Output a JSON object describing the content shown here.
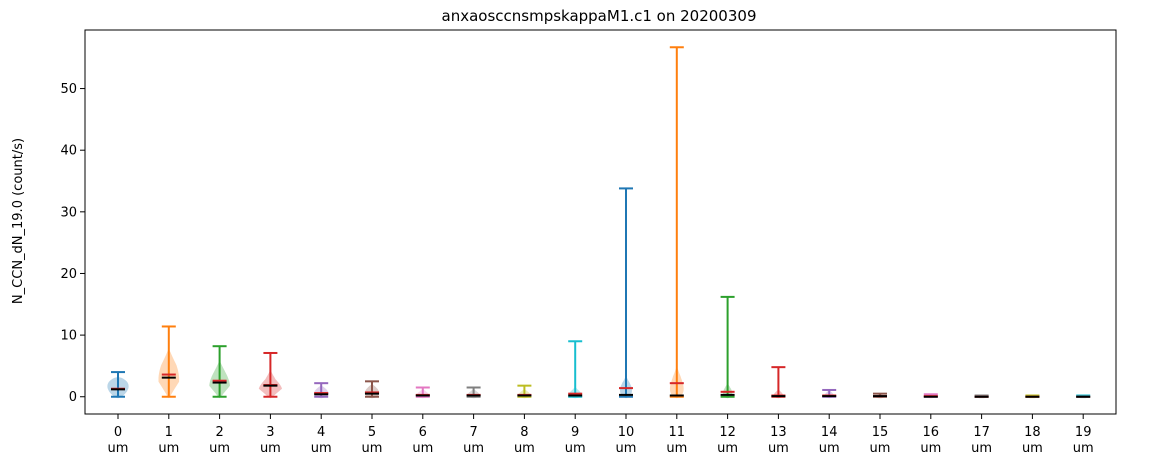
{
  "chart_data": {
    "type": "violin",
    "title": "anxaosccnsmpskappaM1.c1 on 20200309",
    "xlabel": "",
    "ylabel": "N_CCN_dN_19.0 (count/s)",
    "ylim": [
      -2.8,
      59.5
    ],
    "yticks": [
      0,
      10,
      20,
      30,
      40,
      50
    ],
    "grid": false,
    "legend": "none",
    "categories": [
      "0\num",
      "1\num",
      "2\num",
      "3\num",
      "4\num",
      "5\num",
      "6\num",
      "7\num",
      "8\num",
      "9\num",
      "10\num",
      "11\num",
      "12\num",
      "13\num",
      "14\num",
      "15\num",
      "16\num",
      "17\num",
      "18\num",
      "19\num"
    ],
    "colors": [
      "#1f77b4",
      "#ff7f0e",
      "#2ca02c",
      "#d62728",
      "#9467bd",
      "#8c564b",
      "#e377c2",
      "#7f7f7f",
      "#bcbd22",
      "#17becf",
      "#1f77b4",
      "#ff7f0e",
      "#2ca02c",
      "#d62728",
      "#9467bd",
      "#8c564b",
      "#e377c2",
      "#7f7f7f",
      "#bcbd22",
      "#17becf"
    ],
    "mean_color": "#d62728",
    "median_color": "#000000",
    "series": [
      {
        "min": 0.0,
        "max": 4.0,
        "mean": 1.3,
        "median": 1.2,
        "body_halfwidth": [
          0.6,
          0.9
        ]
      },
      {
        "min": 0.0,
        "max": 11.4,
        "mean": 3.6,
        "median": 3.1,
        "body_halfwidth": [
          0.3,
          0.8,
          0.6,
          0.2
        ]
      },
      {
        "min": 0.0,
        "max": 8.2,
        "mean": 2.6,
        "median": 2.3,
        "body_halfwidth": [
          0.3,
          0.8,
          0.5,
          0.2
        ]
      },
      {
        "min": 0.0,
        "max": 7.1,
        "mean": 1.9,
        "median": 1.8,
        "body_halfwidth": [
          0.4,
          0.9,
          0.4,
          0.1
        ]
      },
      {
        "min": 0.0,
        "max": 2.2,
        "mean": 0.6,
        "median": 0.4,
        "body_halfwidth": [
          0.7,
          0.3
        ]
      },
      {
        "min": 0.0,
        "max": 2.5,
        "mean": 0.7,
        "median": 0.5,
        "body_halfwidth": [
          0.7,
          0.3
        ]
      },
      {
        "min": 0.0,
        "max": 1.5,
        "mean": 0.3,
        "median": 0.2,
        "body_halfwidth": [
          0.6,
          0.2
        ]
      },
      {
        "min": 0.0,
        "max": 1.5,
        "mean": 0.3,
        "median": 0.2,
        "body_halfwidth": [
          0.6,
          0.2
        ]
      },
      {
        "min": 0.0,
        "max": 1.8,
        "mean": 0.3,
        "median": 0.2,
        "body_halfwidth": [
          0.6,
          0.2
        ]
      },
      {
        "min": 0.0,
        "max": 9.0,
        "mean": 0.5,
        "median": 0.2,
        "body_halfwidth": [
          0.7,
          0.1
        ]
      },
      {
        "min": 0.0,
        "max": 33.8,
        "mean": 1.4,
        "median": 0.3,
        "body_halfwidth": [
          0.6,
          0.4,
          0.1
        ]
      },
      {
        "min": 0.0,
        "max": 56.7,
        "mean": 2.2,
        "median": 0.2,
        "body_halfwidth": [
          0.8,
          0.4,
          0.1
        ]
      },
      {
        "min": 0.0,
        "max": 16.2,
        "mean": 0.8,
        "median": 0.3,
        "body_halfwidth": [
          0.5,
          0.1
        ]
      },
      {
        "min": 0.0,
        "max": 4.8,
        "mean": 0.2,
        "median": 0.1,
        "body_halfwidth": [
          0.5,
          0.1
        ]
      },
      {
        "min": 0.0,
        "max": 1.1,
        "mean": 0.2,
        "median": 0.1,
        "body_halfwidth": [
          0.5,
          0.1
        ]
      },
      {
        "min": 0.0,
        "max": 0.5,
        "mean": 0.1,
        "median": 0.1,
        "body_halfwidth": [
          0.5,
          0.1
        ]
      },
      {
        "min": 0.0,
        "max": 0.4,
        "mean": 0.1,
        "median": 0.0,
        "body_halfwidth": [
          0.5,
          0.1
        ]
      },
      {
        "min": 0.0,
        "max": 0.2,
        "mean": 0.0,
        "median": 0.0,
        "body_halfwidth": [
          0.5,
          0.1
        ]
      },
      {
        "min": 0.0,
        "max": 0.2,
        "mean": 0.0,
        "median": 0.0,
        "body_halfwidth": [
          0.5,
          0.1
        ]
      },
      {
        "min": 0.0,
        "max": 0.2,
        "mean": 0.0,
        "median": 0.0,
        "body_halfwidth": [
          0.5,
          0.1
        ]
      }
    ]
  }
}
